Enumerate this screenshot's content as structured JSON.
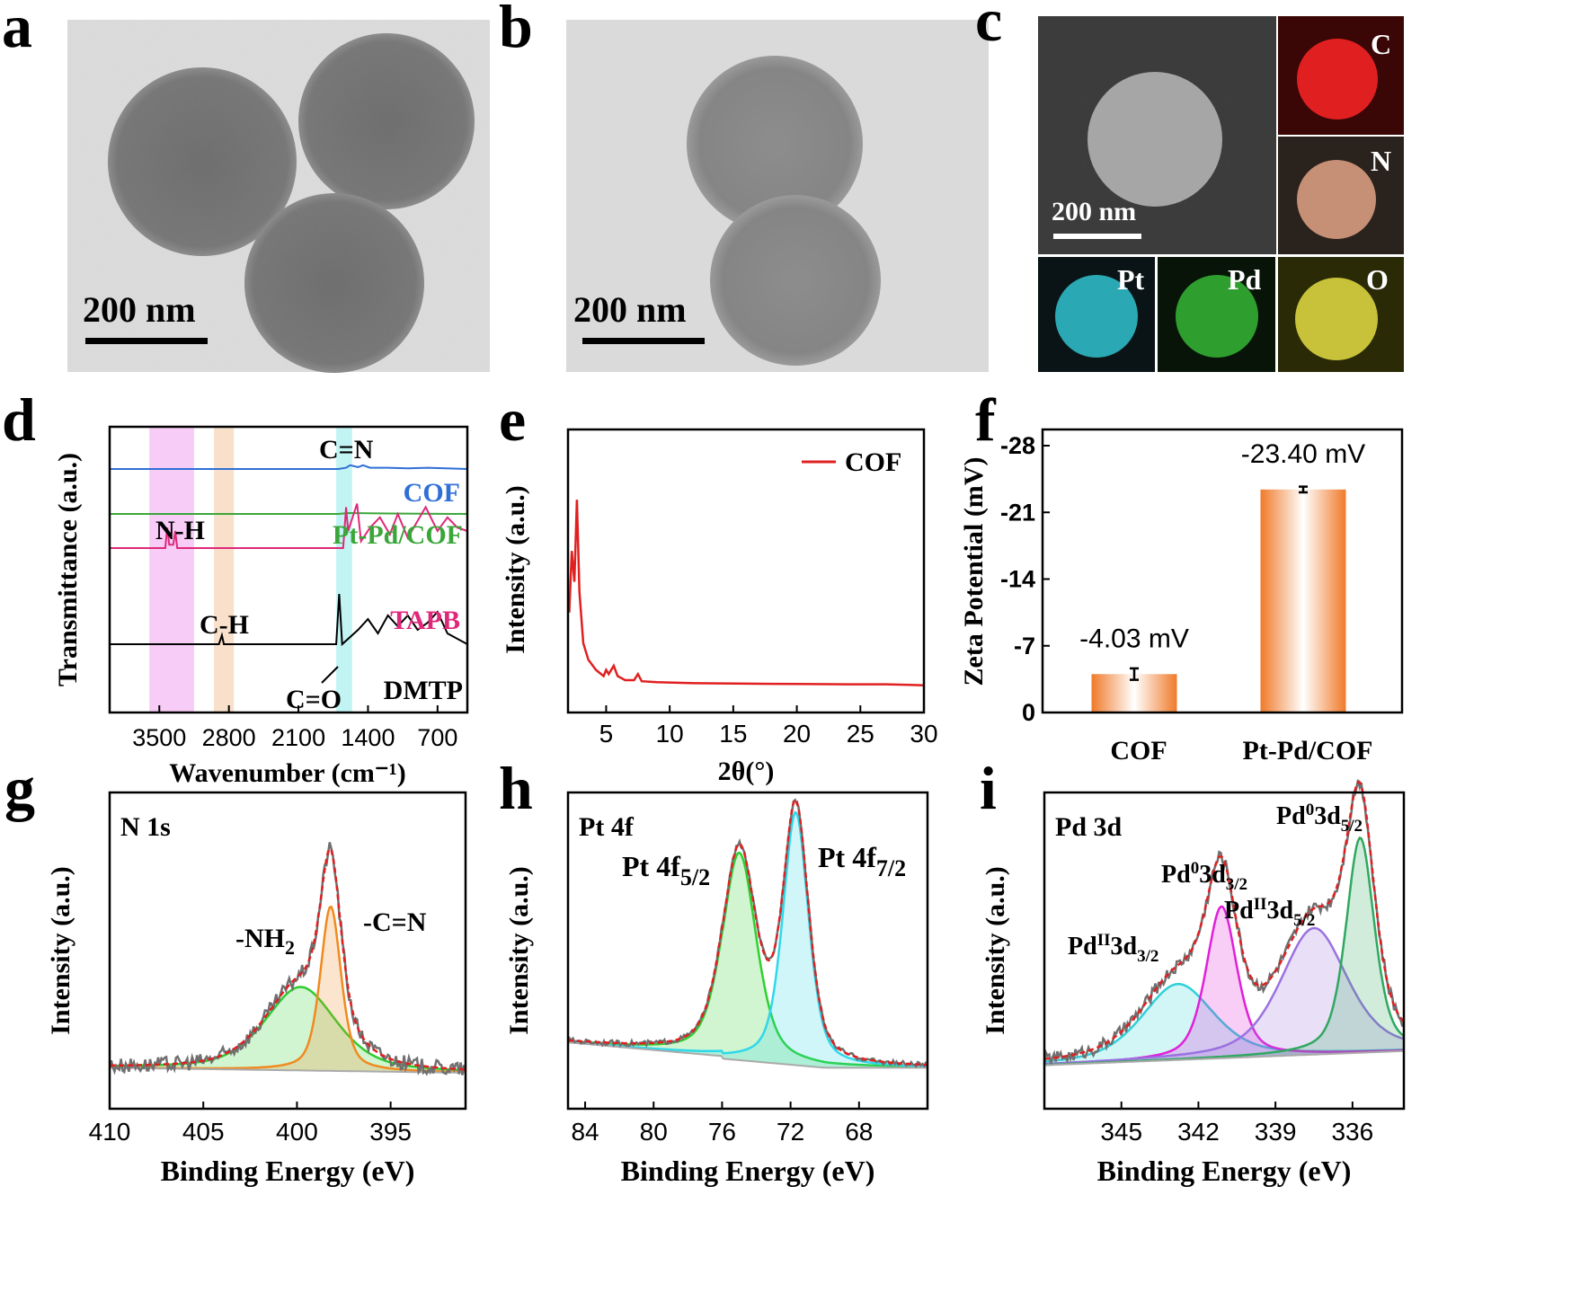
{
  "panels": {
    "a": {
      "letter": "a",
      "scale_label": "200 nm"
    },
    "b": {
      "letter": "b",
      "scale_label": "200 nm"
    },
    "c": {
      "letter": "c",
      "scale_label": "200 nm",
      "maps": [
        "C",
        "N",
        "Pt",
        "Pd",
        "O"
      ]
    },
    "d": {
      "letter": "d"
    },
    "e": {
      "letter": "e"
    },
    "f": {
      "letter": "f"
    },
    "g": {
      "letter": "g"
    },
    "h": {
      "letter": "h"
    },
    "i": {
      "letter": "i"
    }
  },
  "colors": {
    "cof": "#2f6fd6",
    "pt_pd_cof": "#3aa63a",
    "tapb": "#e0287a",
    "dmtp": "#000000",
    "xrd": "#e02020",
    "bar": "#f07a2a",
    "fit": "#e02020",
    "raw": "#707070"
  },
  "chart_data": [
    {
      "panel": "d",
      "type": "line",
      "xlabel": "Wavenumber (cm⁻¹)",
      "ylabel": "Transmittance (a.u.)",
      "xlim": [
        4000,
        400
      ],
      "xticks": [
        "3500",
        "2800",
        "2100",
        "1400",
        "700"
      ],
      "series": [
        {
          "name": "COF",
          "color_key": "cof",
          "offset": 4,
          "points": [
            [
              4000,
              0
            ],
            [
              1700,
              0
            ],
            [
              1620,
              -0.1
            ],
            [
              1580,
              -0.3
            ],
            [
              1500,
              -0.15
            ],
            [
              1450,
              -0.3
            ],
            [
              1380,
              -0.1
            ],
            [
              1200,
              -0.1
            ],
            [
              1000,
              -0.05
            ],
            [
              800,
              -0.1
            ],
            [
              400,
              0
            ]
          ]
        },
        {
          "name": "Pt-Pd/COF",
          "color_key": "pt_pd_cof",
          "offset": 3,
          "points": [
            [
              4000,
              0
            ],
            [
              1700,
              0
            ],
            [
              1600,
              -0.1
            ],
            [
              1200,
              -0.05
            ],
            [
              400,
              0
            ]
          ]
        },
        {
          "name": "TAPB",
          "color_key": "tapb",
          "offset": 2,
          "points": [
            [
              4000,
              0
            ],
            [
              3440,
              0
            ],
            [
              3420,
              -0.6
            ],
            [
              3400,
              -0.1
            ],
            [
              3360,
              -0.1
            ],
            [
              3340,
              -0.5
            ],
            [
              3320,
              0
            ],
            [
              1650,
              0
            ],
            [
              1620,
              -1.2
            ],
            [
              1600,
              -0.5
            ],
            [
              1510,
              -1.3
            ],
            [
              1470,
              -0.2
            ],
            [
              1380,
              -0.6
            ],
            [
              1280,
              -0.9
            ],
            [
              1180,
              -0.4
            ],
            [
              1100,
              -1.0
            ],
            [
              1000,
              -0.3
            ],
            [
              900,
              -0.8
            ],
            [
              820,
              -1.2
            ],
            [
              700,
              -0.5
            ],
            [
              600,
              -0.9
            ],
            [
              500,
              -0.6
            ],
            [
              400,
              -0.5
            ]
          ]
        },
        {
          "name": "DMTP",
          "color_key": "dmtp",
          "offset": 1,
          "points": [
            [
              4000,
              0
            ],
            [
              2900,
              0
            ],
            [
              2870,
              -0.25
            ],
            [
              2850,
              0
            ],
            [
              1720,
              0
            ],
            [
              1690,
              -1.4
            ],
            [
              1660,
              0
            ],
            [
              1500,
              -0.4
            ],
            [
              1400,
              -0.7
            ],
            [
              1300,
              -0.3
            ],
            [
              1200,
              -0.8
            ],
            [
              1100,
              -0.5
            ],
            [
              1000,
              -0.8
            ],
            [
              900,
              -0.4
            ],
            [
              800,
              -0.6
            ],
            [
              700,
              -0.9
            ],
            [
              600,
              -0.3
            ],
            [
              400,
              0
            ]
          ]
        }
      ],
      "bands": [
        {
          "from": 3600,
          "to": 3150,
          "color": "#f4b6f4"
        },
        {
          "from": 2950,
          "to": 2750,
          "color": "#f5d3b5"
        },
        {
          "from": 1720,
          "to": 1560,
          "color": "#a9f0f0"
        }
      ],
      "annotations": [
        "C=N",
        "N-H",
        "C-H",
        "C=O"
      ]
    },
    {
      "panel": "e",
      "type": "line",
      "xlabel": "2θ(°)",
      "ylabel": "Intensity (a.u.)",
      "xlim": [
        2,
        30
      ],
      "xticks": [
        5,
        10,
        15,
        20,
        25,
        30
      ],
      "legend": [
        "COF"
      ],
      "series": [
        {
          "name": "COF",
          "color_key": "xrd",
          "points": [
            [
              2.1,
              0.4
            ],
            [
              2.3,
              0.7
            ],
            [
              2.5,
              0.55
            ],
            [
              2.7,
              0.95
            ],
            [
              2.9,
              0.5
            ],
            [
              3.2,
              0.25
            ],
            [
              3.6,
              0.17
            ],
            [
              4.2,
              0.12
            ],
            [
              4.8,
              0.09
            ],
            [
              5.0,
              0.12
            ],
            [
              5.2,
              0.1
            ],
            [
              5.6,
              0.14
            ],
            [
              5.9,
              0.09
            ],
            [
              6.5,
              0.07
            ],
            [
              7.2,
              0.07
            ],
            [
              7.5,
              0.1
            ],
            [
              7.8,
              0.065
            ],
            [
              9,
              0.06
            ],
            [
              12,
              0.055
            ],
            [
              18,
              0.052
            ],
            [
              24,
              0.05
            ],
            [
              27,
              0.05
            ],
            [
              30,
              0.045
            ]
          ]
        }
      ]
    },
    {
      "panel": "f",
      "type": "bar",
      "ylabel": "Zeta Potential (mV)",
      "categories": [
        "COF",
        "Pt-Pd/COF"
      ],
      "values": [
        -4.03,
        -23.4
      ],
      "errors": [
        0.6,
        0.3
      ],
      "value_labels": [
        "-4.03 mV",
        "-23.40 mV"
      ],
      "ylim": [
        0,
        -28
      ],
      "yticks": [
        "-28",
        "-21",
        "-14",
        "-7",
        "0"
      ]
    },
    {
      "panel": "g",
      "type": "line",
      "title": "N 1s",
      "xlabel": "Binding Energy (eV)",
      "ylabel": "Intensity (a.u.)",
      "xlim": [
        410,
        391
      ],
      "xticks": [
        410,
        405,
        400,
        395
      ],
      "peaks": [
        {
          "name": "-NH₂",
          "center": 399.8,
          "height": 0.33,
          "width": 1.9,
          "color": "#2ecc2e"
        },
        {
          "name": "-C=N",
          "center": 398.2,
          "height": 0.65,
          "width": 0.55,
          "color": "#f08a20"
        }
      ],
      "labels": [
        "-NH",
        "2",
        "-C=N"
      ]
    },
    {
      "panel": "h",
      "type": "line",
      "title": "Pt 4f",
      "xlabel": "Binding Energy (eV)",
      "ylabel": "Intensity (a.u.)",
      "xlim": [
        85,
        64
      ],
      "xticks": [
        84,
        80,
        76,
        72,
        68
      ],
      "peaks": [
        {
          "name": "Pt 4f5/2",
          "center": 75.0,
          "height": 0.82,
          "width": 1.0,
          "color": "#2ed02e"
        },
        {
          "name": "Pt 4f7/2",
          "center": 71.7,
          "height": 1.0,
          "width": 0.75,
          "color": "#2ed8ea"
        }
      ],
      "labels": [
        "Pt 4f",
        "5/2",
        "Pt 4f",
        "7/2"
      ]
    },
    {
      "panel": "i",
      "type": "line",
      "title": "Pd 3d",
      "xlabel": "Binding Energy (eV)",
      "ylabel": "Intensity (a.u.)",
      "xlim": [
        348,
        334
      ],
      "xticks": [
        345,
        342,
        339,
        336
      ],
      "peaks": [
        {
          "name": "PdII3d3/2",
          "center": 342.8,
          "height": 0.3,
          "width": 1.4,
          "color": "#30d0d8"
        },
        {
          "name": "Pd03d3/2",
          "center": 341.1,
          "height": 0.6,
          "width": 0.6,
          "color": "#e020d8"
        },
        {
          "name": "PdII3d5/2",
          "center": 337.5,
          "height": 0.5,
          "width": 1.3,
          "color": "#9a72e0"
        },
        {
          "name": "Pd03d5/2",
          "center": 335.7,
          "height": 0.85,
          "width": 0.55,
          "color": "#30a860"
        }
      ],
      "labels": {
        "pdii32": [
          "Pd",
          "II",
          "3d",
          "3/2"
        ],
        "pd032": [
          "Pd",
          "0",
          "3d",
          "3/2"
        ],
        "pdii52": [
          "Pd",
          "II",
          "3d",
          "5/2"
        ],
        "pd052": [
          "Pd",
          "0",
          "3d",
          "5/2"
        ]
      }
    }
  ]
}
